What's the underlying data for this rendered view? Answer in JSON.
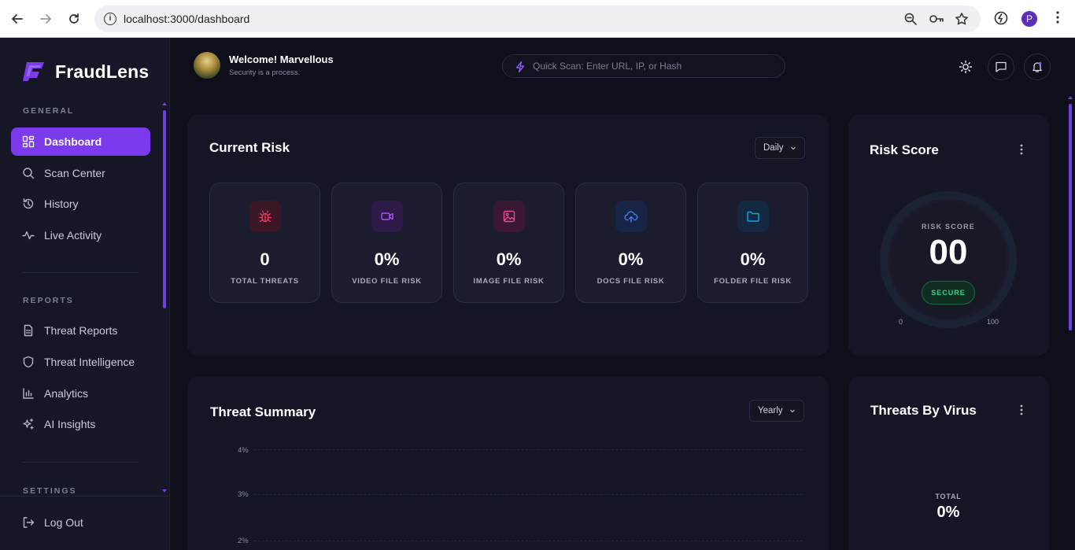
{
  "browser": {
    "url": "localhost:3000/dashboard",
    "profile_initial": "P"
  },
  "brand": {
    "name": "FraudLens"
  },
  "sidebar": {
    "sections": [
      {
        "label": "GENERAL"
      },
      {
        "label": "REPORTS"
      },
      {
        "label": "SETTINGS"
      }
    ],
    "items": [
      {
        "label": "Dashboard",
        "icon": "dashboard-grid-icon",
        "active": true
      },
      {
        "label": "Scan Center",
        "icon": "search-icon"
      },
      {
        "label": "History",
        "icon": "history-icon"
      },
      {
        "label": "Live Activity",
        "icon": "activity-pulse-icon"
      },
      {
        "label": "Threat Reports",
        "icon": "document-icon"
      },
      {
        "label": "Threat Intelligence",
        "icon": "shield-icon"
      },
      {
        "label": "Analytics",
        "icon": "bar-chart-icon"
      },
      {
        "label": "AI Insights",
        "icon": "sparkles-icon"
      }
    ],
    "logout_label": "Log Out"
  },
  "header": {
    "welcome": "Welcome! Marvellous",
    "tagline": "Security is a process.",
    "search_placeholder": "Quick Scan: Enter URL, IP, or Hash"
  },
  "current_risk": {
    "title": "Current Risk",
    "period": "Daily",
    "tiles": [
      {
        "value": "0",
        "label": "TOTAL THREATS",
        "icon": "bug-icon",
        "color": "#ef3a5d"
      },
      {
        "value": "0%",
        "label": "VIDEO FILE RISK",
        "icon": "video-icon",
        "color": "#a855f7"
      },
      {
        "value": "0%",
        "label": "IMAGE FILE RISK",
        "icon": "image-icon",
        "color": "#ec4899"
      },
      {
        "value": "0%",
        "label": "DOCS FILE RISK",
        "icon": "cloud-upload-icon",
        "color": "#3b82f6"
      },
      {
        "value": "0%",
        "label": "FOLDER FILE RISK",
        "icon": "folder-icon",
        "color": "#0ea5e9"
      }
    ]
  },
  "risk_score": {
    "title": "Risk Score",
    "label": "RISK SCORE",
    "value": "00",
    "status": "SECURE",
    "min": "0",
    "max": "100",
    "level": 0
  },
  "threat_summary": {
    "title": "Threat Summary",
    "period": "Yearly",
    "y_ticks": [
      "4%",
      "3%",
      "2%"
    ]
  },
  "threats_by_virus": {
    "title": "Threats By Virus",
    "total_label": "TOTAL",
    "total_value": "0%"
  },
  "colors": {
    "accent": "#7c3aed",
    "secure": "#2ddc88"
  }
}
